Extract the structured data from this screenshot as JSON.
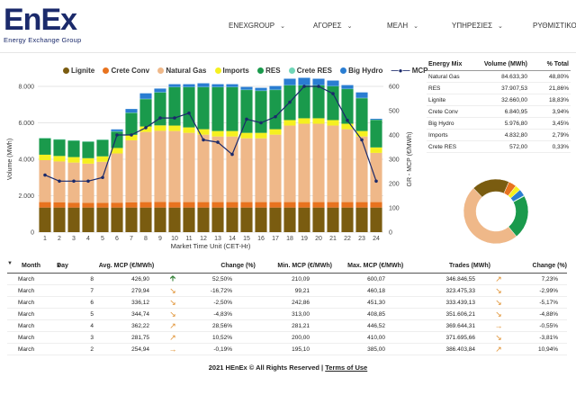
{
  "brand": {
    "logo_text": "EnEx",
    "logo_sub": "Energy Exchange Group"
  },
  "nav": [
    {
      "label": "ENEXGROUP",
      "has_chevron": true
    },
    {
      "label": "ΑΓΟΡΕΣ",
      "has_chevron": true
    },
    {
      "label": "ΜΕΛΗ",
      "has_chevron": true
    },
    {
      "label": "ΥΠΗΡΕΣΙΕΣ",
      "has_chevron": true
    },
    {
      "label": "ΡΥΘΜΙΣΤΙΚΟ",
      "has_chevron": false
    }
  ],
  "colors": {
    "lignite": "#7a5c10",
    "crete_conv": "#e8731f",
    "natural_gas": "#efb889",
    "imports": "#f5f020",
    "res": "#1a9a4c",
    "crete_res": "#70d6b8",
    "big_hydro": "#2a7dd2",
    "mcp": "#1b2a6b"
  },
  "chart_data": {
    "type": "bar",
    "stacked": true,
    "xlabel": "Market Time Unit (CET-Hr)",
    "ylabel": "Volume (MWh)",
    "y2label": "GR - MCP (€/MWh)",
    "ylim": [
      0,
      8000
    ],
    "y2lim": [
      0,
      600
    ],
    "yticks": [
      "0",
      "2.000",
      "4.000",
      "6.000",
      "8.000"
    ],
    "y2ticks": [
      "0",
      "100",
      "200",
      "300",
      "400",
      "500",
      "600"
    ],
    "categories": [
      "1",
      "2",
      "3",
      "4",
      "5",
      "6",
      "7",
      "8",
      "9",
      "10",
      "11",
      "12",
      "13",
      "14",
      "15",
      "16",
      "17",
      "18",
      "19",
      "20",
      "21",
      "22",
      "23",
      "24"
    ],
    "series": [
      {
        "name": "Lignite",
        "values": [
          1350,
          1350,
          1350,
          1350,
          1350,
          1350,
          1350,
          1350,
          1350,
          1350,
          1350,
          1350,
          1350,
          1350,
          1350,
          1350,
          1350,
          1350,
          1350,
          1350,
          1350,
          1350,
          1350,
          1350
        ]
      },
      {
        "name": "Crete Conv",
        "values": [
          300,
          280,
          270,
          260,
          260,
          270,
          290,
          300,
          310,
          300,
          300,
          300,
          300,
          300,
          300,
          300,
          300,
          300,
          300,
          300,
          300,
          300,
          300,
          300
        ]
      },
      {
        "name": "Natural Gas",
        "values": [
          2300,
          2250,
          2200,
          2150,
          2250,
          2700,
          3400,
          3850,
          3900,
          3900,
          3800,
          3700,
          3600,
          3600,
          3500,
          3500,
          3700,
          4200,
          4300,
          4300,
          4200,
          4000,
          3600,
          2700
        ]
      },
      {
        "name": "Imports",
        "values": [
          300,
          300,
          300,
          300,
          300,
          300,
          300,
          300,
          300,
          300,
          300,
          300,
          300,
          300,
          300,
          300,
          300,
          300,
          300,
          300,
          300,
          300,
          300,
          300
        ]
      },
      {
        "name": "RES",
        "values": [
          900,
          900,
          900,
          900,
          900,
          900,
          1200,
          1500,
          1800,
          2100,
          2200,
          2300,
          2400,
          2400,
          2350,
          2300,
          2150,
          1900,
          1800,
          1800,
          1850,
          1900,
          1800,
          1500
        ]
      },
      {
        "name": "Crete RES",
        "values": [
          20,
          20,
          20,
          20,
          20,
          20,
          20,
          20,
          20,
          20,
          20,
          20,
          20,
          20,
          20,
          20,
          20,
          20,
          20,
          20,
          20,
          20,
          20,
          20
        ]
      },
      {
        "name": "Big Hydro",
        "values": [
          0,
          0,
          0,
          0,
          0,
          100,
          200,
          300,
          200,
          150,
          150,
          200,
          150,
          150,
          150,
          150,
          200,
          350,
          400,
          350,
          300,
          200,
          300,
          50
        ]
      }
    ],
    "mcp": {
      "name": "MCP",
      "values": [
        235,
        210,
        210,
        210,
        225,
        400,
        400,
        430,
        470,
        470,
        490,
        380,
        370,
        320,
        465,
        450,
        475,
        535,
        600,
        600,
        570,
        460,
        380,
        210
      ]
    }
  },
  "energy_mix": {
    "headers": [
      "Energy Mix",
      "Volume (MWh)",
      "% Total"
    ],
    "rows": [
      {
        "name": "Natural Gas",
        "volume": "84.633,30",
        "pct": "48,80%"
      },
      {
        "name": "RES",
        "volume": "37.907,53",
        "pct": "21,86%"
      },
      {
        "name": "Lignite",
        "volume": "32.660,00",
        "pct": "18,83%"
      },
      {
        "name": "Crete Conv",
        "volume": "6.840,95",
        "pct": "3,94%"
      },
      {
        "name": "Big Hydro",
        "volume": "5.976,80",
        "pct": "3,45%"
      },
      {
        "name": "Imports",
        "volume": "4.832,80",
        "pct": "2,79%"
      },
      {
        "name": "Crete RES",
        "volume": "572,00",
        "pct": "0,33%"
      }
    ]
  },
  "donut": {
    "slices": [
      {
        "name": "Natural Gas",
        "value": 48.8
      },
      {
        "name": "Lignite",
        "value": 18.83
      },
      {
        "name": "Crete Conv",
        "value": 3.94
      },
      {
        "name": "Imports",
        "value": 2.79
      },
      {
        "name": "Big Hydro",
        "value": 3.45
      },
      {
        "name": "Crete RES",
        "value": 0.33
      },
      {
        "name": "RES",
        "value": 21.86
      }
    ]
  },
  "daily": {
    "headers": {
      "month": "Month",
      "day": "Day",
      "avg": "Avg. MCP (€/MWh)",
      "chg": "Change (%)",
      "min": "Min. MCP (€/MWh)",
      "max": "Max. MCP (€/MWh)",
      "trades": "Trades (MWh)",
      "chg2": "Change (%)"
    },
    "rows": [
      {
        "month": "March",
        "day": "8",
        "avg": "426,90",
        "ind1": "up",
        "chg": "52,50%",
        "min": "210,09",
        "max": "600,07",
        "trades": "346.846,55",
        "ind2": "diag-up",
        "chg2": "7,23%"
      },
      {
        "month": "March",
        "day": "7",
        "avg": "279,94",
        "ind1": "diag-down",
        "chg": "-16,72%",
        "min": "99,21",
        "max": "460,18",
        "trades": "323.475,33",
        "ind2": "diag-down",
        "chg2": "-2,99%"
      },
      {
        "month": "March",
        "day": "6",
        "avg": "336,12",
        "ind1": "diag-down",
        "chg": "-2,50%",
        "min": "242,86",
        "max": "451,30",
        "trades": "333.439,13",
        "ind2": "diag-down",
        "chg2": "-5,17%"
      },
      {
        "month": "March",
        "day": "5",
        "avg": "344,74",
        "ind1": "diag-down",
        "chg": "-4,83%",
        "min": "313,00",
        "max": "408,85",
        "trades": "351.606,21",
        "ind2": "diag-down",
        "chg2": "-4,88%"
      },
      {
        "month": "March",
        "day": "4",
        "avg": "362,22",
        "ind1": "diag-up",
        "chg": "28,56%",
        "min": "281,21",
        "max": "446,52",
        "trades": "369.644,31",
        "ind2": "right",
        "chg2": "-0,55%"
      },
      {
        "month": "March",
        "day": "3",
        "avg": "281,75",
        "ind1": "diag-up",
        "chg": "10,52%",
        "min": "200,00",
        "max": "410,00",
        "trades": "371.695,66",
        "ind2": "diag-down",
        "chg2": "-3,81%"
      },
      {
        "month": "March",
        "day": "2",
        "avg": "254,94",
        "ind1": "right",
        "chg": "-0,19%",
        "min": "195,10",
        "max": "385,00",
        "trades": "386.403,84",
        "ind2": "diag-up",
        "chg2": "10,94%"
      }
    ]
  },
  "footer": {
    "text": "2021 HEnEx © All Rights Reserved | ",
    "link": "Terms of Use"
  }
}
